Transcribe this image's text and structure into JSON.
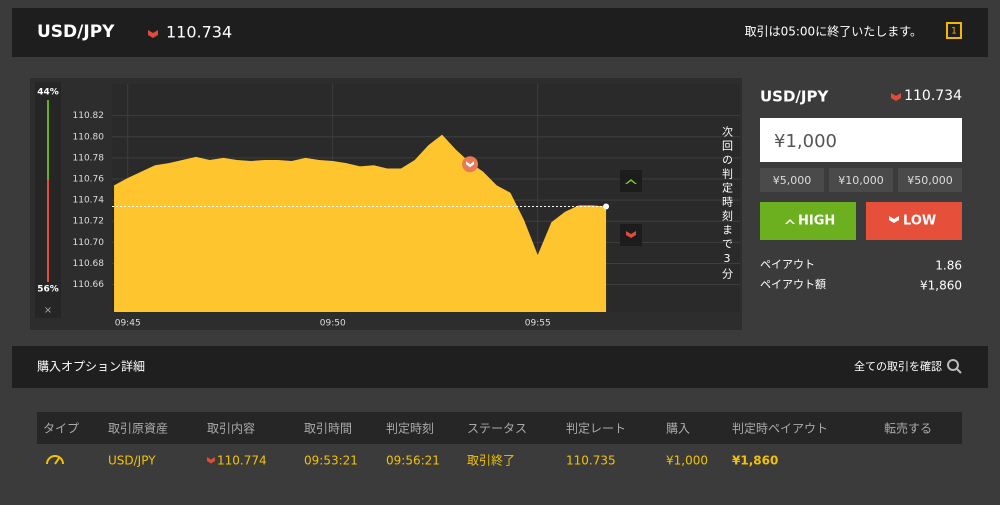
{
  "header": {
    "pair": "USD/JPY",
    "rate": "110.734",
    "notice": "取引は05:00に終了いたします。"
  },
  "gauge": {
    "values": [
      44,
      56
    ],
    "value_labels": [
      "44%",
      "56%"
    ],
    "close": "×"
  },
  "chart": {
    "type": "area",
    "x": [
      "09:44:40",
      "09:45:00",
      "09:45:20",
      "09:45:40",
      "09:46:00",
      "09:46:20",
      "09:46:40",
      "09:47:00",
      "09:47:20",
      "09:47:40",
      "09:48:00",
      "09:48:20",
      "09:48:40",
      "09:49:00",
      "09:49:20",
      "09:49:40",
      "09:50:00",
      "09:50:20",
      "09:50:40",
      "09:51:00",
      "09:51:20",
      "09:51:40",
      "09:52:00",
      "09:52:20",
      "09:52:40",
      "09:53:00",
      "09:53:20",
      "09:53:40",
      "09:54:00",
      "09:54:20",
      "09:54:40",
      "09:55:00",
      "09:55:20",
      "09:55:40",
      "09:56:00",
      "09:56:20",
      "09:56:40"
    ],
    "values": [
      110.754,
      110.761,
      110.767,
      110.773,
      110.775,
      110.778,
      110.781,
      110.778,
      110.78,
      110.778,
      110.777,
      110.778,
      110.778,
      110.777,
      110.78,
      110.778,
      110.777,
      110.775,
      110.772,
      110.773,
      110.77,
      110.77,
      110.778,
      110.792,
      110.802,
      110.788,
      110.776,
      110.767,
      110.754,
      110.747,
      110.721,
      110.688,
      110.719,
      110.729,
      110.735,
      110.735,
      110.734
    ],
    "color": "#ffc52e",
    "current_rate": 110.734,
    "entry": {
      "x": "09:53:21",
      "value": 110.774
    },
    "xlim": [
      "09:44:37",
      "09:59:56"
    ],
    "xticks": [
      "09:45",
      "09:50",
      "09:55"
    ],
    "ylim": [
      110.634,
      110.85
    ],
    "yticks": [
      110.82,
      {
        "value": 110.8,
        "label": "110.80"
      },
      110.78,
      110.76,
      110.74,
      110.72,
      {
        "value": 110.7,
        "label": "110.70"
      },
      110.68,
      110.66
    ],
    "grid": true,
    "countdown": "次回の判定時刻まで3分"
  },
  "trade_panel": {
    "pair": "USD/JPY",
    "rate": "110.734",
    "amount": "¥1,000",
    "presets": [
      "¥5,000",
      "¥10,000",
      "¥50,000"
    ],
    "high": "HIGH",
    "low": "LOW",
    "payout_label": "ペイアウト",
    "payout": "1.86",
    "payout_amount_label": "ペイアウト額",
    "payout_amount": "¥1,860"
  },
  "details": {
    "title": "購入オプション詳細",
    "view_all": "全ての取引を確認",
    "table": {
      "headers": [
        "タイプ",
        "取引原資産",
        "取引内容",
        "取引時間",
        "判定時刻",
        "ステータス",
        "判定レート",
        "購入",
        "判定時ペイアウト",
        "転売する"
      ],
      "rows": [
        [
          "USD/JPY",
          "110.774",
          "09:53:21",
          "09:56:21",
          "取引終了",
          "110.735",
          "¥1,000",
          "¥1,860"
        ]
      ]
    }
  }
}
